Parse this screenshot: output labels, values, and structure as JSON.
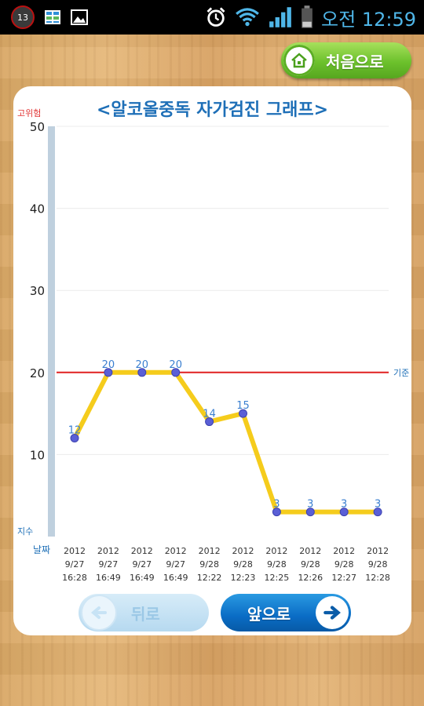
{
  "status_bar": {
    "notification_count": "13",
    "time": "오전 12:59",
    "icons": [
      "notification-badge-icon",
      "app-grid-icon",
      "gallery-icon",
      "alarm-icon",
      "wifi-icon",
      "signal-icon",
      "battery-icon"
    ]
  },
  "header": {
    "home_label": "처음으로"
  },
  "chart_data": {
    "type": "line",
    "title": "<알코올중독 자가검진 그래프>",
    "ylim": [
      0,
      50
    ],
    "yticks": [
      10,
      20,
      30,
      40,
      50
    ],
    "y_top_label": "고위험",
    "y_bottom_label": "지수",
    "x_axis_label": "날짜",
    "threshold": {
      "value": 20,
      "label": "기준",
      "color": "#e02020"
    },
    "series_color": "#f5cc1c",
    "categories": [
      [
        "2012",
        "9/27",
        "16:28"
      ],
      [
        "2012",
        "9/27",
        "16:49"
      ],
      [
        "2012",
        "9/27",
        "16:49"
      ],
      [
        "2012",
        "9/27",
        "16:49"
      ],
      [
        "2012",
        "9/28",
        "12:22"
      ],
      [
        "2012",
        "9/28",
        "12:23"
      ],
      [
        "2012",
        "9/28",
        "12:25"
      ],
      [
        "2012",
        "9/28",
        "12:26"
      ],
      [
        "2012",
        "9/28",
        "12:27"
      ],
      [
        "2012",
        "9/28",
        "12:28"
      ]
    ],
    "values": [
      12,
      20,
      20,
      20,
      14,
      15,
      3,
      3,
      3,
      3
    ],
    "grid": true
  },
  "footer": {
    "back_label": "뒤로",
    "forward_label": "앞으로"
  }
}
